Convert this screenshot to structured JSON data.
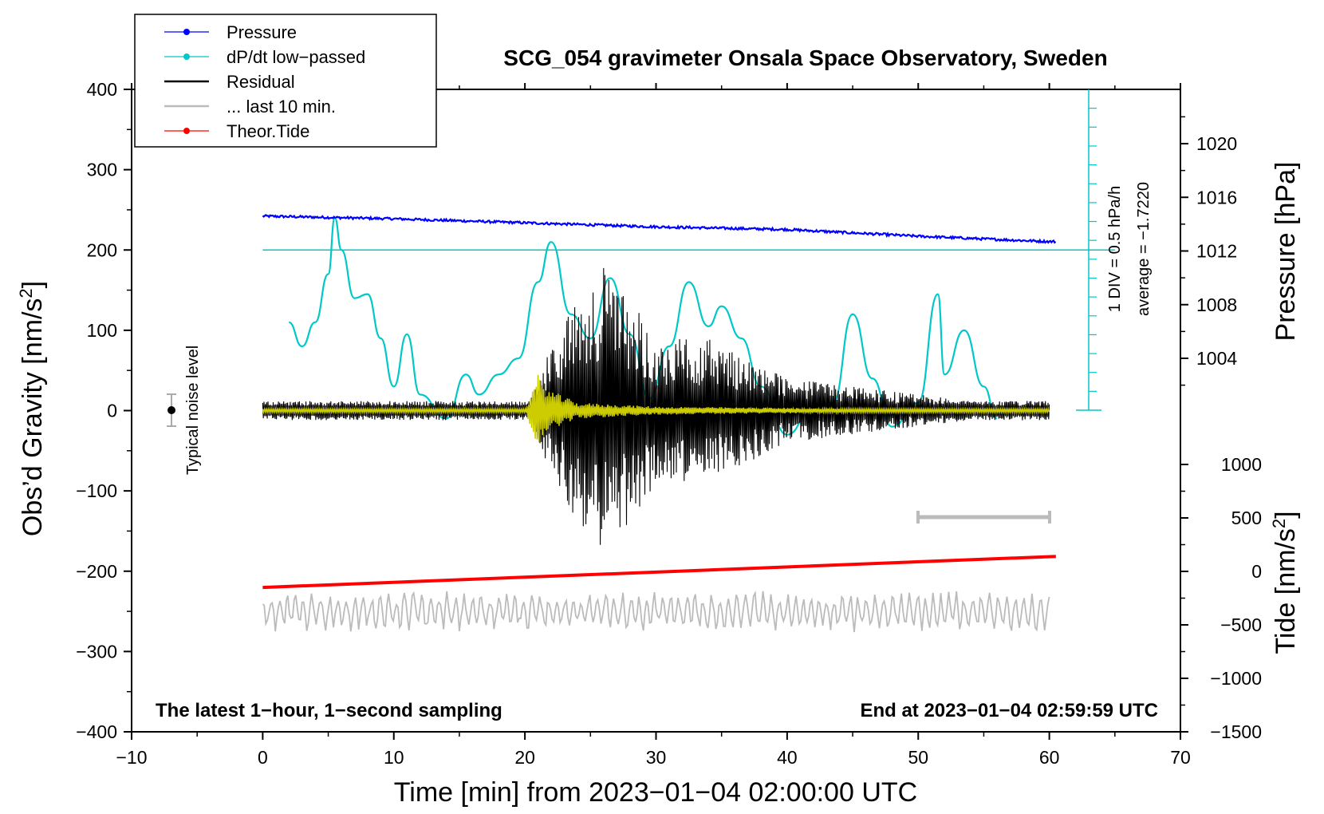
{
  "chart_data": {
    "type": "line",
    "title": "SCG_054 gravimeter Onsala Space Observatory, Sweden",
    "xlabel": "Time [min] from 2023−01−04 02:00:00 UTC",
    "ylabel_left": "Obs’d Gravity [nm/s²]",
    "ylabel_pressure": "Pressure [hPa]",
    "ylabel_tide": "Tide [nm/s²]",
    "xlim": [
      -10,
      70
    ],
    "ylim": [
      -400,
      400
    ],
    "pressure_ylim": [
      1000,
      1024
    ],
    "tide_ylim": [
      -1500,
      1000
    ],
    "x_ticks": [
      "−10",
      "0",
      "10",
      "20",
      "30",
      "40",
      "50",
      "60",
      "70"
    ],
    "x_tick_values": [
      -10,
      0,
      10,
      20,
      30,
      40,
      50,
      60,
      70
    ],
    "y_ticks": [
      "400",
      "300",
      "200",
      "100",
      "0",
      "−100",
      "−200",
      "−300",
      "−400"
    ],
    "y_tick_values": [
      400,
      300,
      200,
      100,
      0,
      -100,
      -200,
      -300,
      -400
    ],
    "pressure_ticks": [
      "1020",
      "1016",
      "1012",
      "1008",
      "1004"
    ],
    "pressure_tick_values": [
      1020,
      1016,
      1012,
      1008,
      1004
    ],
    "tide_ticks": [
      "1000",
      "500",
      "0",
      "−500",
      "−1000",
      "−1500"
    ],
    "tide_tick_values": [
      1000,
      500,
      0,
      -500,
      -1000,
      -1500
    ],
    "legend": [
      {
        "label": "Pressure",
        "color": "#0000ff",
        "marker": true
      },
      {
        "label": "dP/dt low−passed",
        "color": "#00c8c8",
        "marker": true
      },
      {
        "label": "Residual",
        "color": "#000000",
        "marker": false
      },
      {
        "label": "... last 10 min.",
        "color": "#bbbbbb",
        "marker": false
      },
      {
        "label": "Theor.Tide",
        "color": "#ff0000",
        "marker": true
      }
    ],
    "noise_label": "Typical noise level",
    "scale_label": "1 DIV = 0.5 hPa/h",
    "average_label": "average = −1.7220",
    "note_left": "The latest 1−hour, 1−second sampling",
    "note_right": "End at 2023−01−04 02:59:59 UTC",
    "series": [
      {
        "name": "Pressure",
        "color": "#0000ff",
        "x": [
          0,
          10,
          20,
          30,
          40,
          50,
          60
        ],
        "values": [
          1014.6,
          1014.4,
          1014.1,
          1013.8,
          1013.6,
          1013.1,
          1012.7
        ]
      },
      {
        "name": "dP/dt low−passed",
        "color": "#00c8c8",
        "x": [
          2,
          3,
          4,
          5,
          5.5,
          6,
          7,
          8,
          9,
          10,
          11,
          12,
          14,
          15.5,
          16.5,
          18,
          19.5,
          21,
          22,
          23.5,
          25,
          26.5,
          28,
          29.5,
          31,
          32.5,
          34,
          35,
          36.5,
          38,
          40,
          42,
          43.5,
          45,
          46.5,
          48,
          50,
          51.5,
          52,
          53.5,
          55,
          56
        ],
        "values": [
          1.1,
          0.8,
          1.1,
          1.7,
          2.4,
          2.0,
          1.4,
          1.45,
          0.9,
          0.3,
          0.95,
          0.2,
          -0.1,
          0.45,
          0.2,
          0.45,
          0.65,
          1.6,
          2.1,
          1.2,
          0.9,
          1.65,
          0.95,
          0.15,
          0.8,
          1.6,
          1.05,
          1.3,
          0.9,
          0.3,
          -0.3,
          0.05,
          0.1,
          1.2,
          0.4,
          -0.2,
          0.1,
          1.45,
          0.45,
          1.0,
          0.3,
          -0.1
        ]
      },
      {
        "name": "Residual",
        "color": "#000000",
        "x": [
          0,
          10,
          20,
          22,
          24,
          26,
          28,
          30,
          34,
          40,
          50,
          60
        ],
        "values": [
          0,
          0,
          0,
          80,
          140,
          180,
          140,
          90,
          90,
          40,
          20,
          0
        ]
      },
      {
        "name": "Residual low−passed",
        "color": "#cccc00",
        "x": [
          0,
          20,
          21,
          22,
          24,
          30,
          60
        ],
        "values": [
          0,
          0,
          45,
          25,
          10,
          5,
          0
        ]
      },
      {
        "name": "... last 10 min.",
        "color": "#bbbbbb",
        "x": [
          0,
          60
        ],
        "values": [
          -250,
          -250
        ]
      },
      {
        "name": "Theor.Tide",
        "color": "#ff0000",
        "x": [
          0,
          60.5
        ],
        "values": [
          -150,
          140
        ]
      }
    ]
  }
}
